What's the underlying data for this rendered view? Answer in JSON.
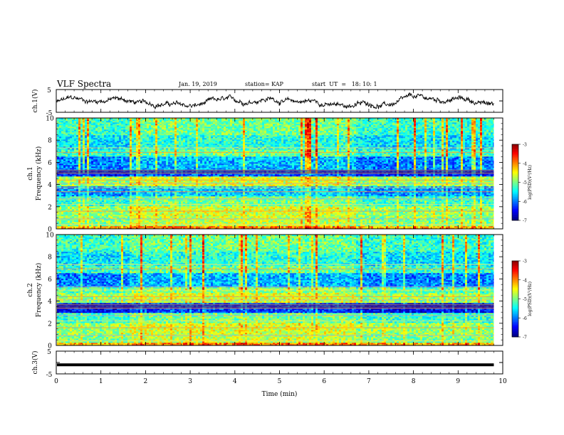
{
  "header": {
    "title": "VLF Spectra",
    "date": "Jan. 19, 2019",
    "station": "station= KAP",
    "start_time": "start  UT  =   18: 10: 1"
  },
  "chart_data": [
    {
      "type": "line",
      "panel": "ch1-waveform",
      "ylabel": "ch.1(V)",
      "ylim": [
        -5,
        5
      ],
      "ytick_labels": [
        "5",
        "-5"
      ],
      "xlim": [
        0,
        10
      ]
    },
    {
      "type": "heatmap",
      "panel": "ch1-spectrogram",
      "ylabel_line1": "ch.1",
      "ylabel_line2": "Frequency (kHz)",
      "ylim": [
        0,
        10
      ],
      "yticks": [
        0,
        2,
        4,
        6,
        8,
        10
      ],
      "colorbar": {
        "label": "log(PSD)(V²/Hz)",
        "range": [
          -7,
          -3
        ],
        "ticks": [
          -7,
          -6,
          -5,
          -4,
          -3
        ]
      }
    },
    {
      "type": "heatmap",
      "panel": "ch2-spectrogram",
      "ylabel_line1": "ch.2",
      "ylabel_line2": "Frequency (kHz)",
      "ylim": [
        0,
        10
      ],
      "yticks": [
        0,
        2,
        4,
        6,
        8,
        10
      ],
      "colorbar": {
        "label": "log(PSD)(V²/Hz)",
        "range": [
          -7,
          -3
        ],
        "ticks": [
          -7,
          -6,
          -5,
          -4,
          -3
        ]
      }
    },
    {
      "type": "line",
      "panel": "ch3-waveform",
      "ylabel": "ch.3(V)",
      "ylim": [
        -5,
        5
      ],
      "ytick_labels": [
        "5",
        "-5"
      ],
      "constant_value": -1,
      "xlabel": "Time (min)",
      "xlim": [
        0,
        10
      ],
      "xticks": [
        0,
        1,
        2,
        3,
        4,
        5,
        6,
        7,
        8,
        9,
        10
      ],
      "data_end_min": 9.8
    }
  ]
}
